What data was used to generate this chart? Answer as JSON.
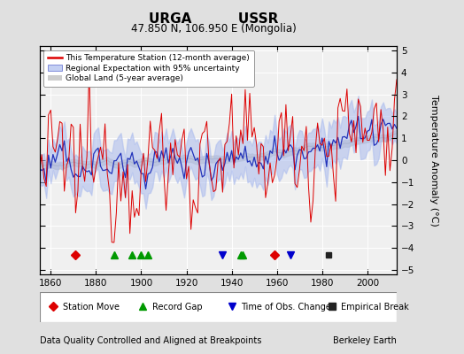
{
  "title_line1": "URGA          USSR",
  "title_line2": "47.850 N, 106.950 E (Mongolia)",
  "ylabel": "Temperature Anomaly (°C)",
  "xlabel_note": "Data Quality Controlled and Aligned at Breakpoints",
  "xlabel_note_right": "Berkeley Earth",
  "year_start": 1855,
  "year_end": 2013,
  "yticks": [
    -5,
    -4,
    -3,
    -2,
    -1,
    0,
    1,
    2,
    3,
    4,
    5
  ],
  "xticks": [
    1860,
    1880,
    1900,
    1920,
    1940,
    1960,
    1980,
    2000
  ],
  "ylim": [
    -5.2,
    5.2
  ],
  "bg_color": "#e0e0e0",
  "plot_bg_color": "#f0f0f0",
  "station_move_years": [
    1871,
    1959
  ],
  "record_gap_years": [
    1888,
    1896,
    1900,
    1903,
    1944,
    1945
  ],
  "time_obs_change_years": [
    1936,
    1966
  ],
  "empirical_break_years": [
    1983
  ],
  "legend_entries": [
    "This Temperature Station (12-month average)",
    "Regional Expectation with 95% uncertainty",
    "Global Land (5-year average)"
  ],
  "line_colors": {
    "station": "#dd0000",
    "regional_center": "#2233bb",
    "regional_fill": "#aabbee",
    "global": "#b0b0b0",
    "global_fill": "#c8c8c8"
  },
  "marker_colors": {
    "station_move": "#dd0000",
    "record_gap": "#009900",
    "time_obs": "#0000cc",
    "empirical": "#222222"
  }
}
